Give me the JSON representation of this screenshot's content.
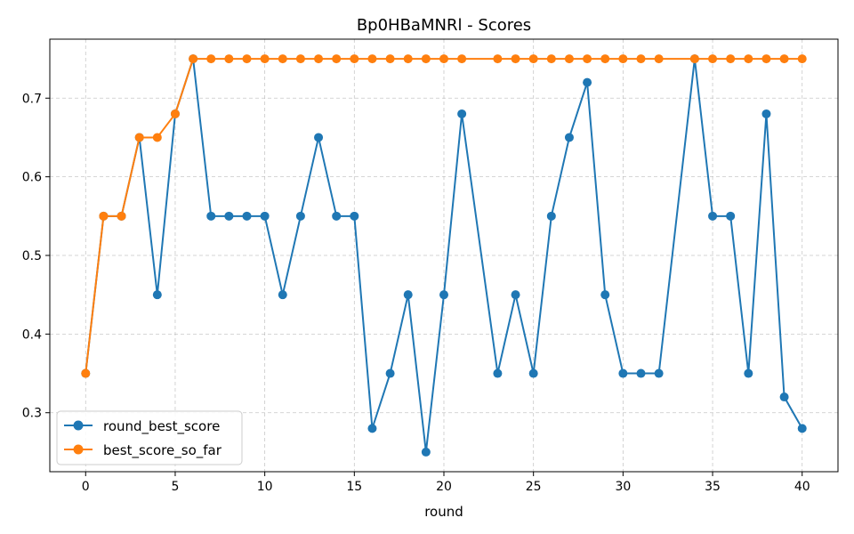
{
  "chart_data": {
    "type": "line",
    "title": "Bp0HBaMNRl - Scores",
    "xlabel": "round",
    "ylabel": "",
    "xlim": [
      -2,
      42
    ],
    "ylim": [
      0.225,
      0.775
    ],
    "xticks": [
      0,
      5,
      10,
      15,
      20,
      25,
      30,
      35,
      40
    ],
    "yticks": [
      0.3,
      0.4,
      0.5,
      0.6,
      0.7
    ],
    "grid": true,
    "legend_position": "lower-left",
    "series": [
      {
        "name": "round_best_score",
        "color": "#1f77b4",
        "x": [
          0,
          1,
          2,
          3,
          4,
          5,
          6,
          7,
          8,
          9,
          10,
          11,
          12,
          13,
          14,
          15,
          16,
          17,
          18,
          19,
          20,
          21,
          23,
          24,
          25,
          26,
          27,
          28,
          29,
          30,
          31,
          32,
          34,
          35,
          36,
          37,
          38,
          39,
          40
        ],
        "y": [
          0.35,
          0.55,
          0.55,
          0.65,
          0.45,
          0.68,
          0.75,
          0.55,
          0.55,
          0.55,
          0.55,
          0.45,
          0.55,
          0.65,
          0.55,
          0.55,
          0.28,
          0.35,
          0.45,
          0.25,
          0.45,
          0.68,
          0.35,
          0.45,
          0.35,
          0.55,
          0.65,
          0.72,
          0.45,
          0.35,
          0.35,
          0.35,
          0.75,
          0.55,
          0.55,
          0.35,
          0.68,
          0.32,
          0.28
        ]
      },
      {
        "name": "best_score_so_far",
        "color": "#ff7f0e",
        "x": [
          0,
          1,
          2,
          3,
          4,
          5,
          6,
          7,
          8,
          9,
          10,
          11,
          12,
          13,
          14,
          15,
          16,
          17,
          18,
          19,
          20,
          21,
          23,
          24,
          25,
          26,
          27,
          28,
          29,
          30,
          31,
          32,
          34,
          35,
          36,
          37,
          38,
          39,
          40
        ],
        "y": [
          0.35,
          0.55,
          0.55,
          0.65,
          0.65,
          0.68,
          0.75,
          0.75,
          0.75,
          0.75,
          0.75,
          0.75,
          0.75,
          0.75,
          0.75,
          0.75,
          0.75,
          0.75,
          0.75,
          0.75,
          0.75,
          0.75,
          0.75,
          0.75,
          0.75,
          0.75,
          0.75,
          0.75,
          0.75,
          0.75,
          0.75,
          0.75,
          0.75,
          0.75,
          0.75,
          0.75,
          0.75,
          0.75,
          0.75
        ]
      }
    ]
  }
}
